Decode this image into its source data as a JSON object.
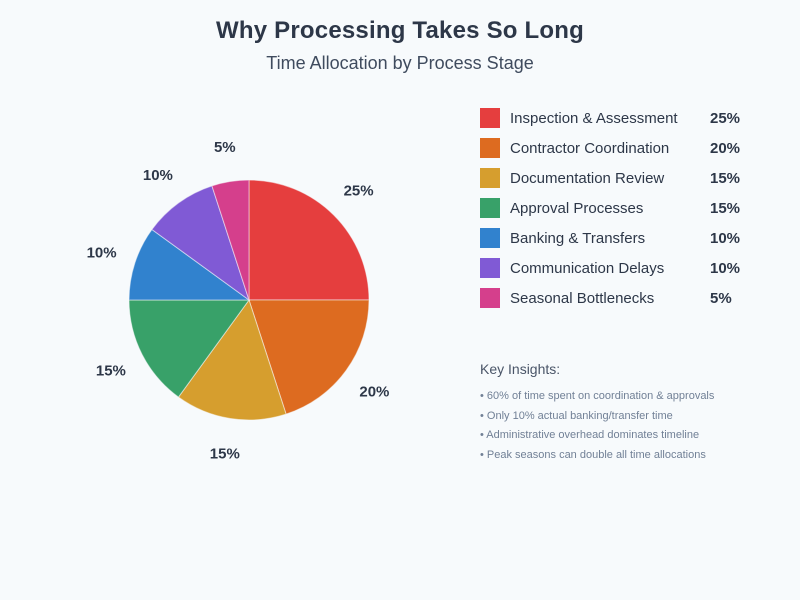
{
  "title": "Why Processing Takes So Long",
  "subtitle": "Time Allocation by Process Stage",
  "colors": {
    "background": "#f7fafc",
    "title_text": "#2d3748",
    "subtitle_text": "#3f4b5e",
    "pie_label_text": "#2d3748",
    "legend_text": "#2d3748",
    "insights_heading_text": "#4a5568",
    "insights_bullet_text": "#718096"
  },
  "chart_data": {
    "type": "pie",
    "title": "Why Processing Takes So Long",
    "subtitle": "Time Allocation by Process Stage",
    "categories": [
      "Inspection & Assessment",
      "Contractor Coordination",
      "Documentation Review",
      "Approval Processes",
      "Banking & Transfers",
      "Communication Delays",
      "Seasonal Bottlenecks"
    ],
    "values": [
      25,
      20,
      15,
      15,
      10,
      10,
      5
    ],
    "unit": "%",
    "slice_labels": [
      "25%",
      "20%",
      "15%",
      "15%",
      "10%",
      "10%",
      "5%"
    ],
    "colors": [
      "#e53e3e",
      "#dd6b20",
      "#d69e2e",
      "#38a169",
      "#3182ce",
      "#805ad5",
      "#d53f8c"
    ],
    "start_angle_deg": 0,
    "direction": "clockwise",
    "legend_position": "right"
  },
  "legend": {
    "items": [
      {
        "label": "Inspection & Assessment",
        "value": "25%",
        "color": "#e53e3e"
      },
      {
        "label": "Contractor Coordination",
        "value": "20%",
        "color": "#dd6b20"
      },
      {
        "label": "Documentation Review",
        "value": "15%",
        "color": "#d69e2e"
      },
      {
        "label": "Approval Processes",
        "value": "15%",
        "color": "#38a169"
      },
      {
        "label": "Banking & Transfers",
        "value": "10%",
        "color": "#3182ce"
      },
      {
        "label": "Communication Delays",
        "value": "10%",
        "color": "#805ad5"
      },
      {
        "label": "Seasonal Bottlenecks",
        "value": "5%",
        "color": "#d53f8c"
      }
    ]
  },
  "insights": {
    "heading": "Key Insights:",
    "bullets": [
      "• 60% of time spent on coordination & approvals",
      "• Only 10% actual banking/transfer time",
      "• Administrative overhead dominates timeline",
      "• Peak seasons can double all time allocations"
    ]
  }
}
